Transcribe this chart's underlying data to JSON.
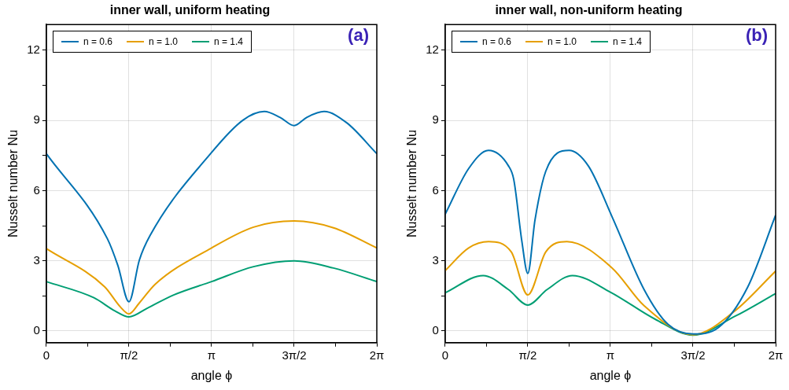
{
  "chart_data": [
    {
      "type": "line",
      "title": "inner wall, uniform heating",
      "xlabel": "angle ϕ",
      "ylabel": "Nusselt number Nu",
      "xlim": [
        0,
        6.2832
      ],
      "ylim": [
        -0.5,
        13.1
      ],
      "xticks": [
        {
          "value": 0,
          "label": "0"
        },
        {
          "value": 0.7854,
          "label": null
        },
        {
          "value": 1.5708,
          "label": "π/2"
        },
        {
          "value": 2.3562,
          "label": null
        },
        {
          "value": 3.1416,
          "label": "π"
        },
        {
          "value": 3.927,
          "label": null
        },
        {
          "value": 4.7124,
          "label": "3π/2"
        },
        {
          "value": 5.4978,
          "label": null
        },
        {
          "value": 6.2832,
          "label": "2π"
        }
      ],
      "yticks": [
        0,
        {
          "value": 1.5,
          "label": null
        },
        3,
        {
          "value": 4.5,
          "label": null
        },
        6,
        {
          "value": 7.5,
          "label": null
        },
        9,
        {
          "value": 10.5,
          "label": null
        },
        12
      ],
      "grid": true,
      "legend": "top left",
      "marker": "none",
      "annotations": [
        "(a)"
      ],
      "series": [
        {
          "name": "n = 0.6",
          "color": "#0072b2",
          "x": [
            0,
            1.159,
            1.36,
            1.571,
            1.769,
            1.97,
            3.142,
            3.738,
            4.144,
            4.445,
            4.712,
            4.951,
            5.281,
            5.711,
            6.283
          ],
          "values": [
            7.58,
            3.95,
            2.8,
            1.25,
            3.03,
            4.07,
            7.63,
            9.01,
            9.38,
            9.13,
            8.78,
            9.13,
            9.38,
            8.9,
            7.58
          ]
        },
        {
          "name": "n = 1.0",
          "color": "#e69f00",
          "x": [
            0,
            1.109,
            1.411,
            1.571,
            1.769,
            2.07,
            3.142,
            3.94,
            4.712,
            5.46,
            6.283
          ],
          "values": [
            3.52,
            1.89,
            1.02,
            0.73,
            1.2,
            2.0,
            3.55,
            4.44,
            4.7,
            4.41,
            3.55
          ]
        },
        {
          "name": "n = 1.4",
          "color": "#009e73",
          "x": [
            0,
            0.905,
            1.31,
            1.571,
            1.916,
            2.422,
            3.142,
            3.94,
            4.712,
            5.46,
            6.283
          ],
          "values": [
            2.11,
            1.42,
            0.85,
            0.6,
            0.97,
            1.54,
            2.11,
            2.75,
            3.0,
            2.69,
            2.11
          ]
        }
      ]
    },
    {
      "type": "line",
      "title": "inner wall, non-uniform heating",
      "xlabel": "angle ϕ",
      "ylabel": "Nusselt number Nu",
      "xlim": [
        0,
        6.2832
      ],
      "ylim": [
        -0.5,
        13.1
      ],
      "xticks": [
        {
          "value": 0,
          "label": "0"
        },
        {
          "value": 0.7854,
          "label": null
        },
        {
          "value": 1.5708,
          "label": "π/2"
        },
        {
          "value": 2.3562,
          "label": null
        },
        {
          "value": 3.1416,
          "label": "π"
        },
        {
          "value": 3.927,
          "label": null
        },
        {
          "value": 4.7124,
          "label": "3π/2"
        },
        {
          "value": 5.4978,
          "label": null
        },
        {
          "value": 6.2832,
          "label": "2π"
        }
      ],
      "yticks": [
        0,
        {
          "value": 1.5,
          "label": null
        },
        3,
        {
          "value": 4.5,
          "label": null
        },
        6,
        {
          "value": 7.5,
          "label": null
        },
        9,
        {
          "value": 10.5,
          "label": null
        },
        12
      ],
      "grid": true,
      "legend": "top left",
      "marker": "none",
      "annotations": [
        "(b)"
      ],
      "series": [
        {
          "name": "n = 0.6",
          "color": "#0072b2",
          "x": [
            0,
            0.446,
            0.823,
            1.203,
            1.304,
            1.458,
            1.571,
            1.709,
            1.913,
            2.356,
            2.721,
            3.176,
            3.782,
            4.238,
            4.712,
            5.202,
            5.755,
            6.283
          ],
          "values": [
            4.99,
            6.94,
            7.72,
            7.06,
            6.48,
            3.84,
            2.46,
            4.76,
            6.83,
            7.72,
            7.06,
            4.87,
            1.77,
            0.28,
            -0.13,
            0.16,
            1.89,
            4.95
          ]
        },
        {
          "name": "n = 1.0",
          "color": "#e69f00",
          "x": [
            0,
            0.446,
            0.826,
            1.257,
            1.571,
            1.913,
            2.315,
            3.176,
            3.782,
            4.712,
            5.504,
            6.283
          ],
          "values": [
            2.58,
            3.55,
            3.82,
            3.38,
            1.54,
            3.38,
            3.82,
            2.69,
            1.08,
            -0.16,
            0.85,
            2.56
          ]
        },
        {
          "name": "n = 1.4",
          "color": "#009e73",
          "x": [
            0,
            0.723,
            1.203,
            1.571,
            1.938,
            2.419,
            3.142,
            3.987,
            4.712,
            5.504,
            6.283
          ],
          "values": [
            1.63,
            2.37,
            1.77,
            1.11,
            1.77,
            2.37,
            1.66,
            0.51,
            -0.18,
            0.62,
            1.6
          ]
        }
      ]
    }
  ]
}
